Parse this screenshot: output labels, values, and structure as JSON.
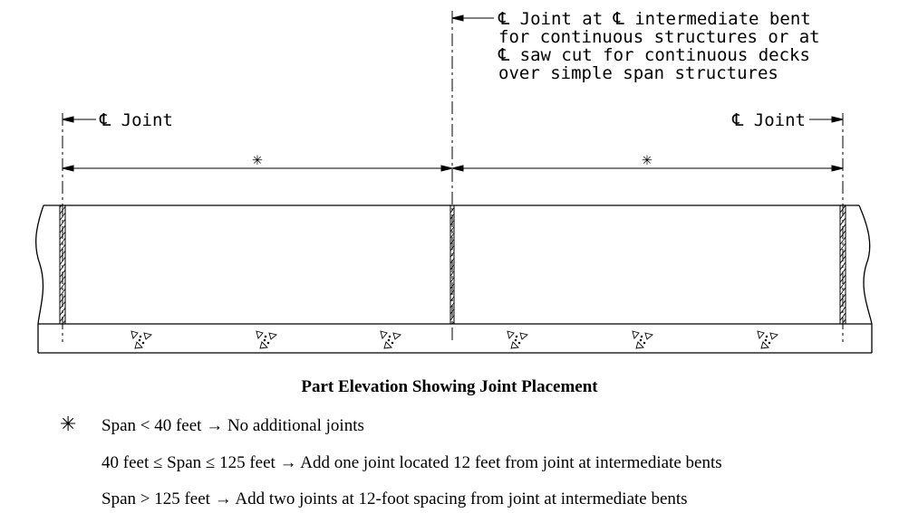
{
  "top_note": {
    "lines": [
      "℄ Joint at ℄ intermediate bent",
      "for continuous structures or at",
      "℄ saw cut for continuous decks",
      "over simple span structures"
    ]
  },
  "left_label": "℄ Joint",
  "right_label": "℄ Joint",
  "span_marks": [
    "✳",
    "✳"
  ],
  "caption": "Part Elevation Showing Joint Placement",
  "notes": {
    "star_symbol": "✳",
    "line1": "Span < 40 feet → No additional joints",
    "line2": "40 feet ≤ Span ≤ 125 feet → Add one joint located 12 feet from joint at intermediate bents",
    "line3": "Span > 125 feet → Add two joints at 12-foot spacing from joint at intermediate bents"
  }
}
